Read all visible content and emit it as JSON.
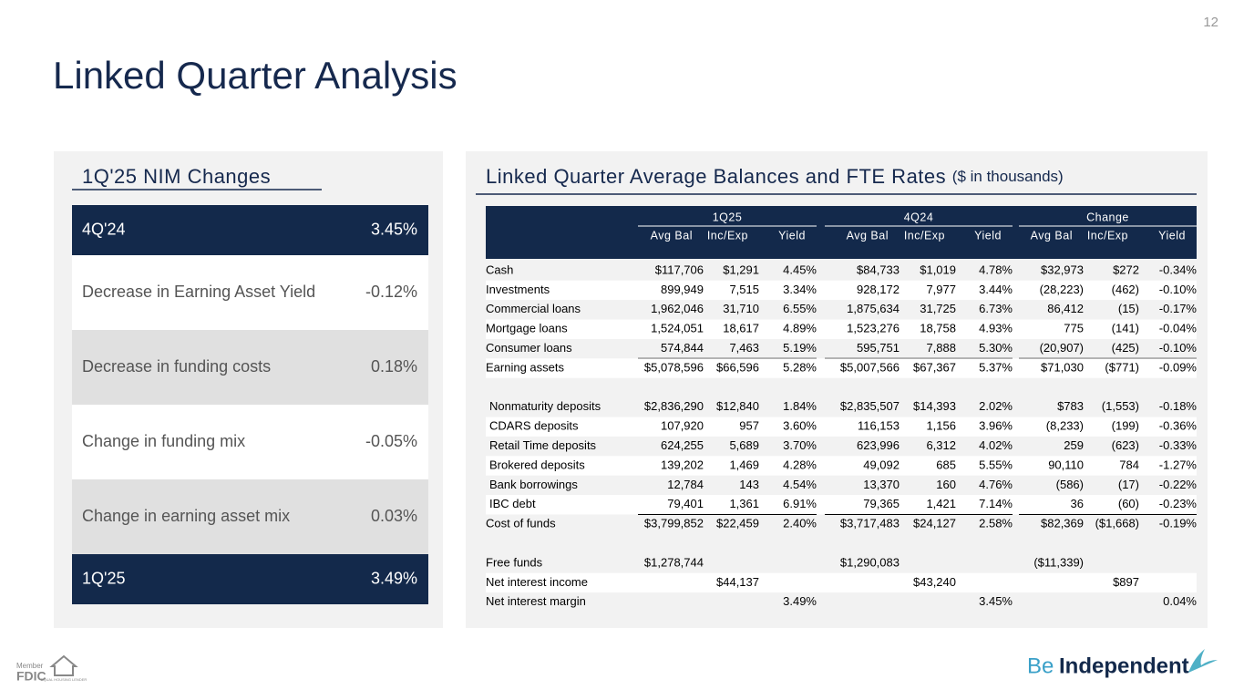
{
  "page_number": "12",
  "title": "Linked Quarter Analysis",
  "nim": {
    "title": "1Q'25 NIM Changes",
    "rows": [
      [
        "4Q'24",
        "3.45%"
      ],
      [
        "Decrease in Earning Asset Yield",
        "-0.12%"
      ],
      [
        "Decrease in funding costs",
        "0.18%"
      ],
      [
        "Change in funding mix",
        "-0.05%"
      ],
      [
        "Change in earning asset mix",
        "0.03%"
      ],
      [
        "1Q'25",
        "3.49%"
      ]
    ]
  },
  "table": {
    "title": "Linked Quarter Average Balances and FTE Rates",
    "subtitle": "($ in thousands)",
    "groups": [
      "1Q25",
      "4Q24",
      "Change"
    ],
    "columns": [
      "Avg Bal",
      "Inc/Exp",
      "Yield",
      "Avg Bal",
      "Inc/Exp",
      "Yield",
      "Avg Bal",
      "Inc/Exp",
      "Yield"
    ],
    "sections": [
      [
        [
          "Cash",
          "$117,706",
          "$1,291",
          "4.45%",
          "$84,733",
          "$1,019",
          "4.78%",
          "$32,973",
          "$272",
          "-0.34%"
        ],
        [
          "Investments",
          "899,949",
          "7,515",
          "3.34%",
          "928,172",
          "7,977",
          "3.44%",
          "(28,223)",
          "(462)",
          "-0.10%"
        ],
        [
          "Commercial loans",
          "1,962,046",
          "31,710",
          "6.55%",
          "1,875,634",
          "31,725",
          "6.73%",
          "86,412",
          "(15)",
          "-0.17%"
        ],
        [
          "Mortgage loans",
          "1,524,051",
          "18,617",
          "4.89%",
          "1,523,276",
          "18,758",
          "4.93%",
          "775",
          "(141)",
          "-0.04%"
        ],
        [
          "Consumer loans",
          "574,844",
          "7,463",
          "5.19%",
          "595,751",
          "7,888",
          "5.30%",
          "(20,907)",
          "(425)",
          "-0.10%"
        ],
        [
          "Earning assets",
          "$5,078,596",
          "$66,596",
          "5.28%",
          "$5,007,566",
          "$67,367",
          "5.37%",
          "$71,030",
          "($771)",
          "-0.09%"
        ]
      ],
      [
        [
          "Nonmaturity deposits",
          "$2,836,290",
          "$12,840",
          "1.84%",
          "$2,835,507",
          "$14,393",
          "2.02%",
          "$783",
          "(1,553)",
          "-0.18%"
        ],
        [
          "CDARS deposits",
          "107,920",
          "957",
          "3.60%",
          "116,153",
          "1,156",
          "3.96%",
          "(8,233)",
          "(199)",
          "-0.36%"
        ],
        [
          "Retail Time deposits",
          "624,255",
          "5,689",
          "3.70%",
          "623,996",
          "6,312",
          "4.02%",
          "259",
          "(623)",
          "-0.33%"
        ],
        [
          "Brokered deposits",
          "139,202",
          "1,469",
          "4.28%",
          "49,092",
          "685",
          "5.55%",
          "90,110",
          "784",
          "-1.27%"
        ],
        [
          "Bank borrowings",
          "12,784",
          "143",
          "4.54%",
          "13,370",
          "160",
          "4.76%",
          "(586)",
          "(17)",
          "-0.22%"
        ],
        [
          "IBC debt",
          "79,401",
          "1,361",
          "6.91%",
          "79,365",
          "1,421",
          "7.14%",
          "36",
          "(60)",
          "-0.23%"
        ],
        [
          "Cost of funds",
          "$3,799,852",
          "$22,459",
          "2.40%",
          "$3,717,483",
          "$24,127",
          "2.58%",
          "$82,369",
          "($1,668)",
          "-0.19%"
        ]
      ],
      [
        [
          "Free funds",
          "$1,278,744",
          null,
          null,
          "$1,290,083",
          null,
          null,
          "($11,339)",
          null,
          null
        ],
        [
          "Net interest income",
          null,
          "$44,137",
          null,
          null,
          "$43,240",
          null,
          null,
          "$897",
          null
        ],
        [
          "Net interest margin",
          null,
          null,
          "3.49%",
          null,
          null,
          "3.45%",
          null,
          null,
          "0.04%"
        ]
      ]
    ]
  },
  "footer": {
    "member": "Member",
    "fdic": "FDIC",
    "lender": "EQUAL HOUSING LENDER",
    "brand_be": "Be",
    "brand_name": "Independent"
  }
}
